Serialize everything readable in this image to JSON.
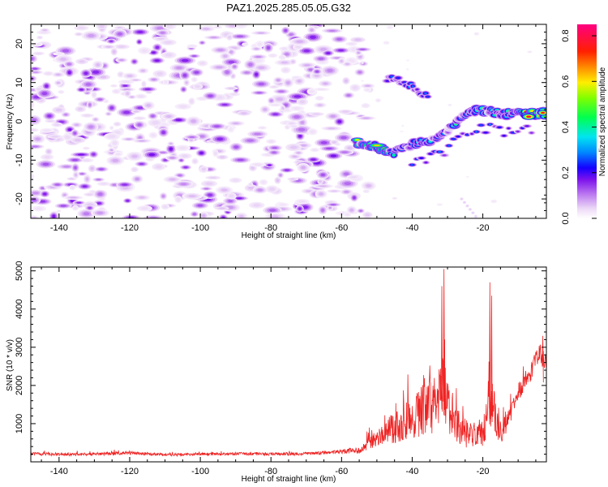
{
  "title": "PAZ1.2025.285.05.05.G32",
  "chart_data": [
    {
      "type": "heatmap",
      "name": "spectrogram",
      "xlabel": "Height of straight line (km)",
      "ylabel": "Frequency (Hz)",
      "xlim": [
        -148,
        -2
      ],
      "ylim": [
        -25,
        25
      ],
      "xticks": [
        -140,
        -120,
        -100,
        -80,
        -60,
        -40,
        -20
      ],
      "yticks": [
        -20,
        -10,
        0,
        10,
        20
      ],
      "colorbar": {
        "label": "Normalized spectral amplitude",
        "range": [
          0,
          0.85
        ],
        "ticks": [
          0.0,
          0.2,
          0.4,
          0.6,
          0.8
        ],
        "tick_labels": [
          "0.0",
          "0.2",
          "0.4",
          "0.6",
          "0.8"
        ],
        "colormap": "white-purple-blue-cyan-green-yellow-orange-red-magenta"
      },
      "ridge": {
        "note": "dominant signal track, frequency (Hz) vs height (km)",
        "x": [
          -56,
          -50,
          -45,
          -40,
          -35,
          -30,
          -25,
          -20,
          -15,
          -10,
          -5,
          -2
        ],
        "y": [
          -5.5,
          -6.5,
          -8,
          -6,
          -5,
          -3,
          2,
          3,
          2,
          2,
          2,
          2
        ],
        "peak": 0.8
      },
      "upper_branch": {
        "x": [
          -45,
          -40,
          -35
        ],
        "y": [
          11,
          9,
          6
        ],
        "peak": 0.3
      },
      "noise": {
        "x_range": [
          -148,
          -56
        ],
        "y_range": [
          -25,
          25
        ],
        "level": 0.08
      }
    },
    {
      "type": "line",
      "name": "snr",
      "xlabel": "Height of straight line (km)",
      "ylabel": "SNR (10 * v/v)",
      "xlim": [
        -148,
        -2
      ],
      "ylim": [
        0,
        5100
      ],
      "xticks": [
        -140,
        -120,
        -100,
        -80,
        -60,
        -40,
        -20
      ],
      "yticks": [
        1000,
        2000,
        3000,
        4000,
        5000
      ],
      "color": "#ee2222",
      "series": [
        {
          "name": "SNR",
          "x": [
            -148,
            -140,
            -130,
            -120,
            -110,
            -100,
            -90,
            -80,
            -70,
            -60,
            -55,
            -50,
            -47,
            -44,
            -42,
            -40,
            -38,
            -36,
            -34,
            -33,
            -32,
            -31,
            -30,
            -29,
            -28,
            -27,
            -26,
            -24,
            -22,
            -20,
            -19,
            -18,
            -17,
            -16,
            -15,
            -14,
            -12,
            -10,
            -8,
            -6,
            -5,
            -4,
            -3,
            -2
          ],
          "base": [
            200,
            180,
            190,
            220,
            170,
            190,
            200,
            190,
            200,
            250,
            280,
            550,
            700,
            800,
            900,
            950,
            1100,
            1300,
            1200,
            1400,
            1600,
            1700,
            1300,
            1100,
            900,
            800,
            700,
            600,
            500,
            700,
            1000,
            1400,
            1200,
            1000,
            800,
            700,
            1200,
            1700,
            2100,
            2300,
            2600,
            2800,
            2600,
            2500
          ],
          "spread": [
            80,
            70,
            80,
            90,
            70,
            80,
            80,
            80,
            80,
            100,
            200,
            400,
            700,
            900,
            1000,
            1100,
            1300,
            1600,
            1500,
            1500,
            1600,
            1700,
            1400,
            1200,
            1000,
            900,
            800,
            700,
            600,
            800,
            1200,
            1600,
            1300,
            1100,
            900,
            700,
            500,
            500,
            500,
            500,
            500,
            500,
            500,
            500
          ]
        }
      ],
      "peaks": [
        {
          "x": -31,
          "y": 5050
        },
        {
          "x": -31.6,
          "y": 4600
        },
        {
          "x": -18,
          "y": 4700
        },
        {
          "x": -17.5,
          "y": 4350
        },
        {
          "x": -3,
          "y": 3300
        }
      ]
    }
  ]
}
